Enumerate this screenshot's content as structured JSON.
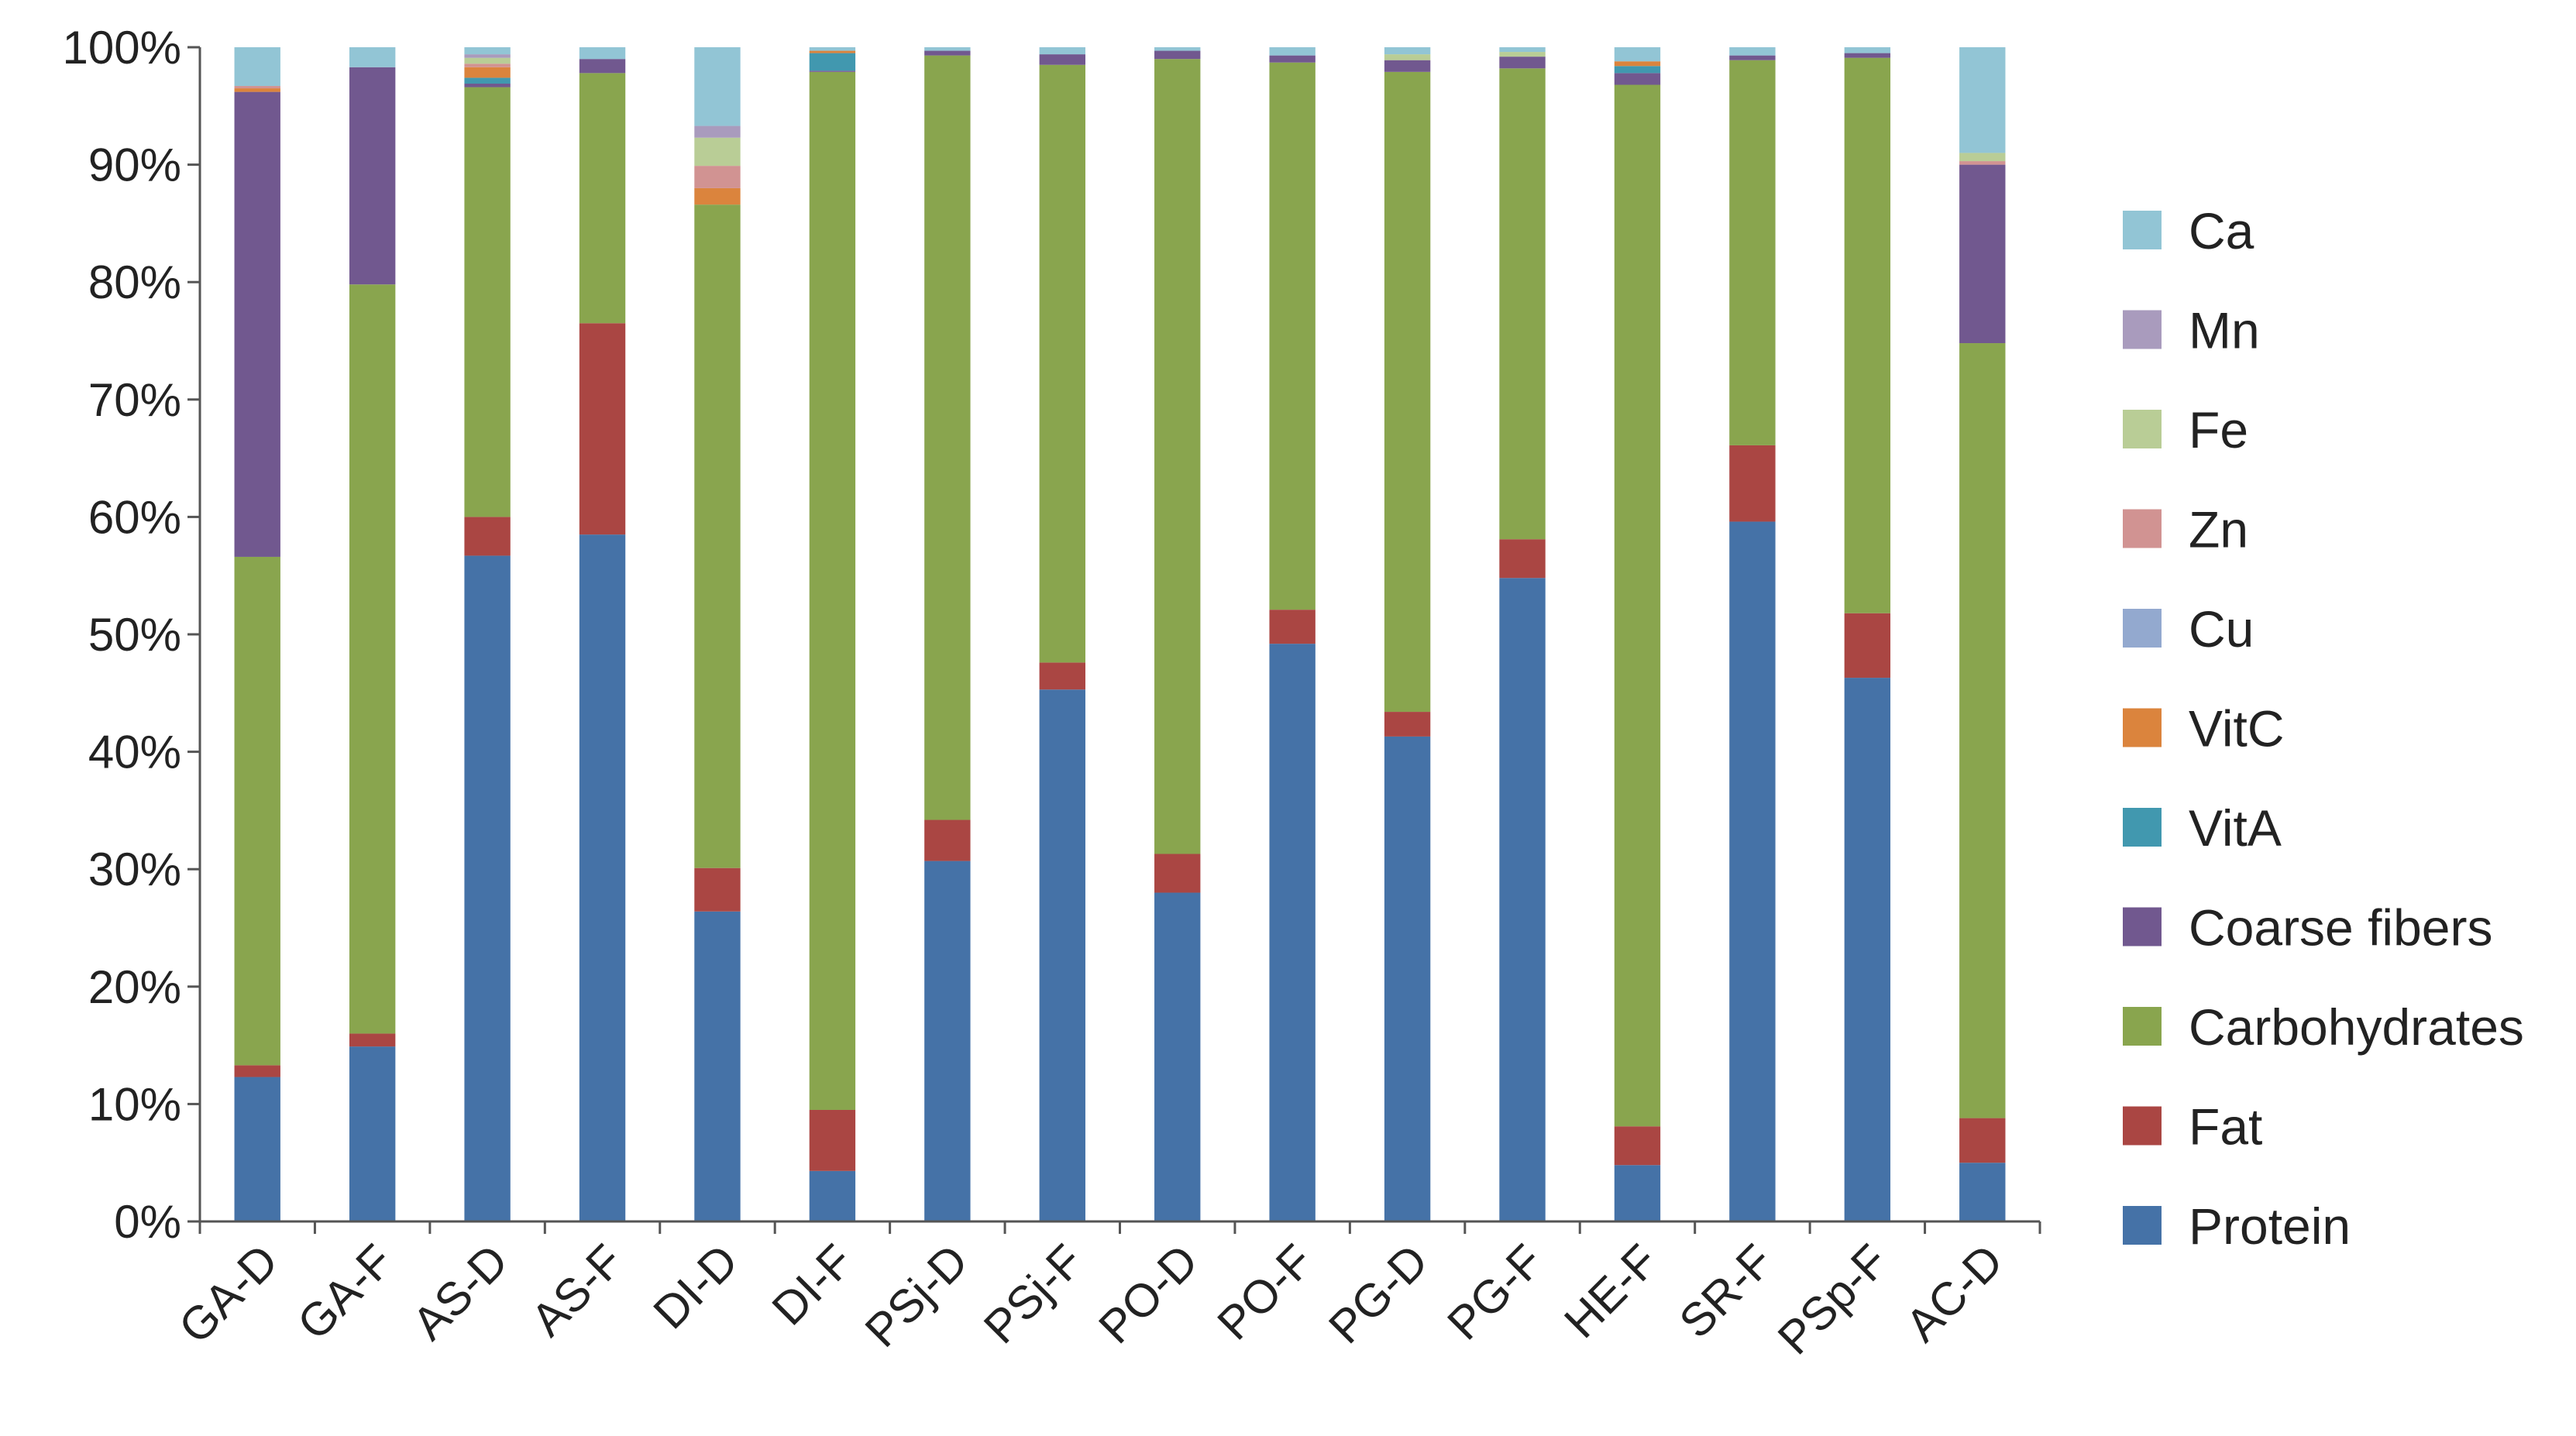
{
  "chart_data": {
    "type": "bar",
    "stacked": true,
    "normalized": true,
    "categories": [
      "GA-D",
      "GA-F",
      "AS-D",
      "AS-F",
      "DI-D",
      "DI-F",
      "PSj-D",
      "PSj-F",
      "PO-D",
      "PO-F",
      "PG-D",
      "PG-F",
      "HE-F",
      "SR-F",
      "PSp-F",
      "AC-D"
    ],
    "ylim": [
      0,
      100
    ],
    "yticks": [
      "0%",
      "10%",
      "20%",
      "30%",
      "40%",
      "50%",
      "60%",
      "70%",
      "80%",
      "90%",
      "100%"
    ],
    "grid": false,
    "legend_position": "right",
    "series": [
      {
        "name": "Protein",
        "color": "#4572A7",
        "values": [
          12.3,
          14.9,
          56.7,
          58.5,
          26.4,
          4.3,
          30.7,
          45.3,
          28.0,
          49.2,
          41.3,
          54.8,
          4.8,
          59.6,
          46.3,
          5.0
        ]
      },
      {
        "name": "Fat",
        "color": "#AA4643",
        "values": [
          1.0,
          1.1,
          3.3,
          18.0,
          3.7,
          5.2,
          3.5,
          2.3,
          3.3,
          2.9,
          2.1,
          3.3,
          3.3,
          6.5,
          5.5,
          3.8
        ]
      },
      {
        "name": "Carbohydrates",
        "color": "#89A54E",
        "values": [
          43.3,
          63.8,
          36.6,
          21.3,
          56.5,
          88.4,
          65.1,
          50.9,
          67.7,
          46.6,
          54.5,
          40.1,
          88.7,
          32.8,
          47.3,
          66.0
        ]
      },
      {
        "name": "Coarse fibers",
        "color": "#71588F",
        "values": [
          39.6,
          18.5,
          0.3,
          1.2,
          0.0,
          0.1,
          0.4,
          0.9,
          0.7,
          0.6,
          1.0,
          1.0,
          1.0,
          0.4,
          0.4,
          15.2
        ]
      },
      {
        "name": "VitA",
        "color": "#4198AF",
        "values": [
          0.0,
          0.0,
          0.5,
          0.0,
          0.0,
          1.5,
          0.0,
          0.0,
          0.0,
          0.0,
          0.0,
          0.0,
          0.6,
          0.0,
          0.0,
          0.0
        ]
      },
      {
        "name": "VitC",
        "color": "#DB843D",
        "values": [
          0.3,
          0.0,
          0.9,
          0.0,
          1.4,
          0.2,
          0.0,
          0.0,
          0.0,
          0.0,
          0.0,
          0.0,
          0.4,
          0.0,
          0.0,
          0.0
        ]
      },
      {
        "name": "Cu",
        "color": "#93A9CF",
        "values": [
          0.0,
          0.0,
          0.0,
          0.0,
          0.0,
          0.0,
          0.0,
          0.0,
          0.0,
          0.0,
          0.0,
          0.0,
          0.0,
          0.0,
          0.0,
          0.0
        ]
      },
      {
        "name": "Zn",
        "color": "#D19392",
        "values": [
          0.2,
          0.0,
          0.3,
          0.0,
          1.9,
          0.0,
          0.0,
          0.0,
          0.0,
          0.0,
          0.0,
          0.0,
          0.0,
          0.0,
          0.0,
          0.3
        ]
      },
      {
        "name": "Fe",
        "color": "#B9CD96",
        "values": [
          0.0,
          0.0,
          0.5,
          0.0,
          2.4,
          0.0,
          0.0,
          0.0,
          0.0,
          0.0,
          0.5,
          0.4,
          0.0,
          0.0,
          0.0,
          0.7
        ]
      },
      {
        "name": "Mn",
        "color": "#A99BBD",
        "values": [
          0.0,
          0.0,
          0.3,
          0.0,
          1.0,
          0.0,
          0.0,
          0.0,
          0.0,
          0.0,
          0.0,
          0.0,
          0.0,
          0.0,
          0.0,
          0.0
        ]
      },
      {
        "name": "Ca",
        "color": "#92C5D5",
        "values": [
          3.3,
          1.7,
          0.6,
          1.0,
          6.7,
          0.3,
          0.3,
          0.6,
          0.3,
          0.7,
          0.6,
          0.4,
          1.2,
          0.7,
          0.5,
          9.0
        ]
      }
    ]
  }
}
